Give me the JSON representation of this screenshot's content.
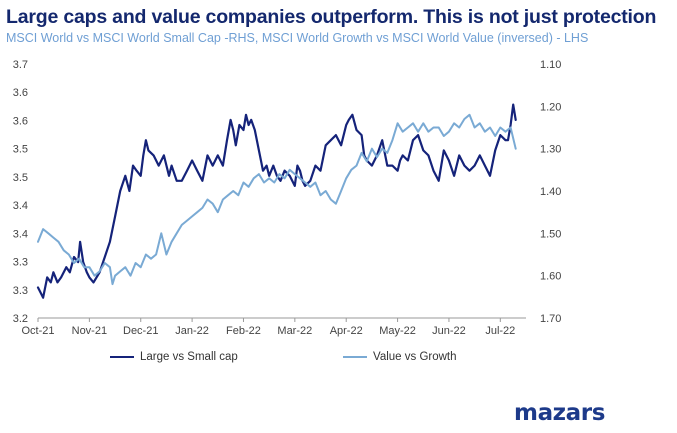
{
  "header": {
    "title": "Large caps and value companies outperform. This is not just protection",
    "subtitle": "MSCI World vs MSCI World Small Cap -RHS, MSCI World Growth vs MSCI World Value (inversed) - LHS"
  },
  "brand": {
    "logo_text": "mazars"
  },
  "colors": {
    "large_vs_small": "#15237a",
    "value_vs_growth": "#7aaad4"
  },
  "chart_data": {
    "type": "line",
    "title": "Large caps and value companies outperform. This is not just protection",
    "subtitle": "MSCI World vs MSCI World Small Cap -RHS, MSCI World Growth vs MSCI World Value (inversed) - LHS",
    "x_ticks": [
      "Oct-21",
      "Nov-21",
      "Dec-21",
      "Jan-22",
      "Feb-22",
      "Mar-22",
      "Apr-22",
      "May-22",
      "Jun-22",
      "Jul-22"
    ],
    "x_range": [
      0,
      9.5
    ],
    "y_left": {
      "ticks": [
        "3.7",
        "3.6",
        "3.6",
        "3.5",
        "3.5",
        "3.4",
        "3.4",
        "3.3",
        "3.3",
        "3.2"
      ],
      "range": [
        3.2,
        3.7
      ]
    },
    "y_right": {
      "ticks": [
        "1.10",
        "1.20",
        "1.30",
        "1.40",
        "1.50",
        "1.60",
        "1.70"
      ],
      "range": [
        1.7,
        1.1
      ],
      "inverted": true
    },
    "grid": false,
    "legend_position": "bottom",
    "series": [
      {
        "name": "Large vs Small cap",
        "axis": "left",
        "color": "#15237a",
        "x": [
          0,
          0.05,
          0.1,
          0.18,
          0.25,
          0.3,
          0.38,
          0.45,
          0.55,
          0.62,
          0.7,
          0.78,
          0.82,
          0.88,
          0.95,
          1.0,
          1.08,
          1.2,
          1.3,
          1.4,
          1.5,
          1.6,
          1.7,
          1.78,
          1.85,
          1.92,
          2.0,
          2.05,
          2.1,
          2.15,
          2.25,
          2.35,
          2.45,
          2.55,
          2.6,
          2.7,
          2.8,
          2.9,
          3.0,
          3.1,
          3.2,
          3.3,
          3.4,
          3.5,
          3.6,
          3.68,
          3.75,
          3.8,
          3.85,
          3.92,
          4.0,
          4.05,
          4.1,
          4.15,
          4.22,
          4.3,
          4.38,
          4.45,
          4.5,
          4.58,
          4.65,
          4.72,
          4.8,
          4.9,
          5.0,
          5.05,
          5.1,
          5.15,
          5.2,
          5.3,
          5.4,
          5.5,
          5.6,
          5.7,
          5.8,
          5.9,
          6.0,
          6.05,
          6.12,
          6.2,
          6.3,
          6.35,
          6.4,
          6.5,
          6.6,
          6.7,
          6.8,
          6.9,
          7.0,
          7.05,
          7.1,
          7.2,
          7.3,
          7.4,
          7.5,
          7.6,
          7.7,
          7.8,
          7.9,
          8.0,
          8.1,
          8.2,
          8.3,
          8.4,
          8.5,
          8.6,
          8.7,
          8.8,
          8.9,
          9.0,
          9.1,
          9.15,
          9.2,
          9.25,
          9.3
        ],
        "y": [
          3.26,
          3.25,
          3.24,
          3.28,
          3.27,
          3.29,
          3.27,
          3.28,
          3.3,
          3.29,
          3.32,
          3.31,
          3.35,
          3.31,
          3.29,
          3.28,
          3.27,
          3.29,
          3.32,
          3.35,
          3.4,
          3.45,
          3.48,
          3.45,
          3.5,
          3.49,
          3.48,
          3.52,
          3.55,
          3.53,
          3.52,
          3.5,
          3.52,
          3.48,
          3.5,
          3.47,
          3.47,
          3.49,
          3.51,
          3.49,
          3.47,
          3.52,
          3.5,
          3.52,
          3.5,
          3.55,
          3.59,
          3.57,
          3.54,
          3.58,
          3.57,
          3.6,
          3.58,
          3.59,
          3.57,
          3.53,
          3.49,
          3.5,
          3.48,
          3.5,
          3.48,
          3.47,
          3.49,
          3.48,
          3.46,
          3.5,
          3.49,
          3.47,
          3.46,
          3.47,
          3.5,
          3.49,
          3.54,
          3.55,
          3.56,
          3.54,
          3.58,
          3.59,
          3.6,
          3.57,
          3.56,
          3.52,
          3.51,
          3.5,
          3.52,
          3.55,
          3.5,
          3.5,
          3.49,
          3.51,
          3.52,
          3.51,
          3.55,
          3.56,
          3.53,
          3.52,
          3.49,
          3.47,
          3.53,
          3.51,
          3.48,
          3.52,
          3.5,
          3.49,
          3.5,
          3.52,
          3.5,
          3.48,
          3.53,
          3.56,
          3.55,
          3.55,
          3.58,
          3.62,
          3.59
        ]
      },
      {
        "name": "Value vs Growth",
        "axis": "right",
        "color": "#7aaad4",
        "x": [
          0,
          0.1,
          0.2,
          0.3,
          0.4,
          0.5,
          0.6,
          0.7,
          0.8,
          0.9,
          1.0,
          1.1,
          1.2,
          1.3,
          1.4,
          1.45,
          1.5,
          1.6,
          1.7,
          1.8,
          1.9,
          2.0,
          2.1,
          2.2,
          2.3,
          2.4,
          2.5,
          2.6,
          2.7,
          2.8,
          2.9,
          3.0,
          3.1,
          3.2,
          3.3,
          3.4,
          3.5,
          3.6,
          3.7,
          3.8,
          3.9,
          4.0,
          4.1,
          4.2,
          4.3,
          4.4,
          4.5,
          4.6,
          4.7,
          4.8,
          4.9,
          5.0,
          5.1,
          5.2,
          5.3,
          5.4,
          5.5,
          5.6,
          5.7,
          5.8,
          5.9,
          6.0,
          6.1,
          6.2,
          6.3,
          6.4,
          6.5,
          6.6,
          6.7,
          6.8,
          6.9,
          7.0,
          7.1,
          7.2,
          7.3,
          7.4,
          7.5,
          7.6,
          7.7,
          7.8,
          7.9,
          8.0,
          8.1,
          8.2,
          8.3,
          8.4,
          8.5,
          8.6,
          8.7,
          8.8,
          8.9,
          9.0,
          9.1,
          9.2,
          9.3
        ],
        "y": [
          1.52,
          1.49,
          1.5,
          1.51,
          1.52,
          1.54,
          1.55,
          1.57,
          1.56,
          1.58,
          1.58,
          1.6,
          1.59,
          1.57,
          1.58,
          1.62,
          1.6,
          1.59,
          1.58,
          1.6,
          1.57,
          1.58,
          1.55,
          1.56,
          1.55,
          1.5,
          1.55,
          1.52,
          1.5,
          1.48,
          1.47,
          1.46,
          1.45,
          1.44,
          1.42,
          1.43,
          1.45,
          1.42,
          1.41,
          1.4,
          1.41,
          1.38,
          1.39,
          1.37,
          1.36,
          1.38,
          1.37,
          1.38,
          1.36,
          1.37,
          1.35,
          1.36,
          1.37,
          1.38,
          1.39,
          1.38,
          1.41,
          1.4,
          1.42,
          1.43,
          1.4,
          1.37,
          1.35,
          1.34,
          1.31,
          1.33,
          1.3,
          1.32,
          1.3,
          1.31,
          1.28,
          1.24,
          1.26,
          1.25,
          1.24,
          1.26,
          1.24,
          1.26,
          1.25,
          1.25,
          1.27,
          1.26,
          1.24,
          1.25,
          1.23,
          1.22,
          1.25,
          1.24,
          1.26,
          1.25,
          1.27,
          1.25,
          1.26,
          1.25,
          1.3
        ]
      }
    ]
  }
}
